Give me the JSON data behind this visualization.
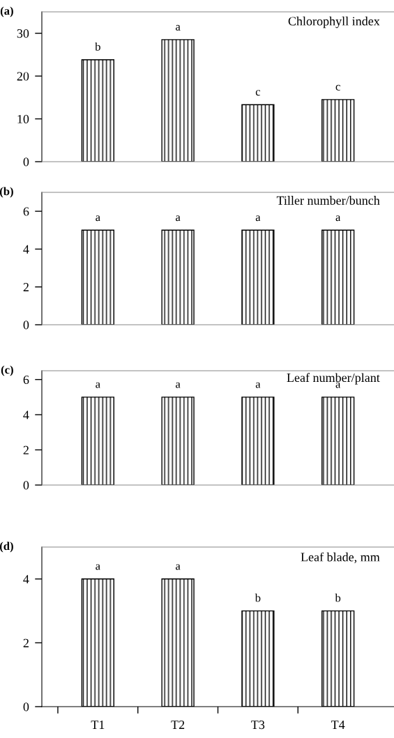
{
  "chart_data": [
    {
      "type": "bar",
      "title": "(a)",
      "categories": [
        "T1",
        "T2",
        "T3",
        "T4"
      ],
      "values": [
        23.8,
        28.5,
        13.3,
        14.5
      ],
      "color": "#000000",
      "ylim": [
        0,
        35
      ],
      "yticks": [
        0,
        10,
        20,
        30
      ],
      "tick_labels": "y",
      "annotations": [
        "Chlorophyll index",
        {
          "text": "b",
          "x": "T1",
          "y": 23.8
        },
        {
          "text": "a",
          "x": "T2",
          "y": 28.5
        },
        {
          "text": "c",
          "x": "T3",
          "y": 13.3
        },
        {
          "text": "c",
          "x": "T4",
          "y": 14.5
        }
      ]
    },
    {
      "type": "bar",
      "title": "(b)",
      "categories": [
        "T1",
        "T2",
        "T3",
        "T4"
      ],
      "values": [
        5,
        5,
        5,
        5
      ],
      "color": "#000000",
      "ylim": [
        0,
        7
      ],
      "yticks": [
        0,
        2,
        4,
        6
      ],
      "tick_labels": "y",
      "annotations": [
        "Tiller number/bunch",
        {
          "text": "a",
          "x": "T1",
          "y": 5
        },
        {
          "text": "a",
          "x": "T2",
          "y": 5
        },
        {
          "text": "a",
          "x": "T3",
          "y": 5
        },
        {
          "text": "a",
          "x": "T4",
          "y": 5
        }
      ]
    },
    {
      "type": "bar",
      "title": "(c)",
      "categories": [
        "T1",
        "T2",
        "T3",
        "T4"
      ],
      "values": [
        5,
        5,
        5,
        5
      ],
      "color": "#000000",
      "ylim": [
        0,
        6.5
      ],
      "yticks": [
        0,
        2,
        4,
        6
      ],
      "tick_labels": "y",
      "annotations": [
        "Leaf number/plant",
        {
          "text": "a",
          "x": "T1",
          "y": 5
        },
        {
          "text": "a",
          "x": "T2",
          "y": 5
        },
        {
          "text": "a",
          "x": "T3",
          "y": 5
        },
        {
          "text": "a",
          "x": "T4",
          "y": 5
        }
      ]
    },
    {
      "type": "bar",
      "title": "(d)",
      "categories": [
        "T1",
        "T2",
        "T3",
        "T4"
      ],
      "values": [
        4,
        4,
        3,
        3
      ],
      "color": "#000000",
      "ylim": [
        0,
        5
      ],
      "yticks": [
        0,
        2,
        4
      ],
      "annotations": [
        "Leaf blade, mm",
        {
          "text": "a",
          "x": "T1",
          "y": 4
        },
        {
          "text": "a",
          "x": "T2",
          "y": 4
        },
        {
          "text": "b",
          "x": "T3",
          "y": 3
        },
        {
          "text": "b",
          "x": "T4",
          "y": 3
        }
      ]
    }
  ]
}
